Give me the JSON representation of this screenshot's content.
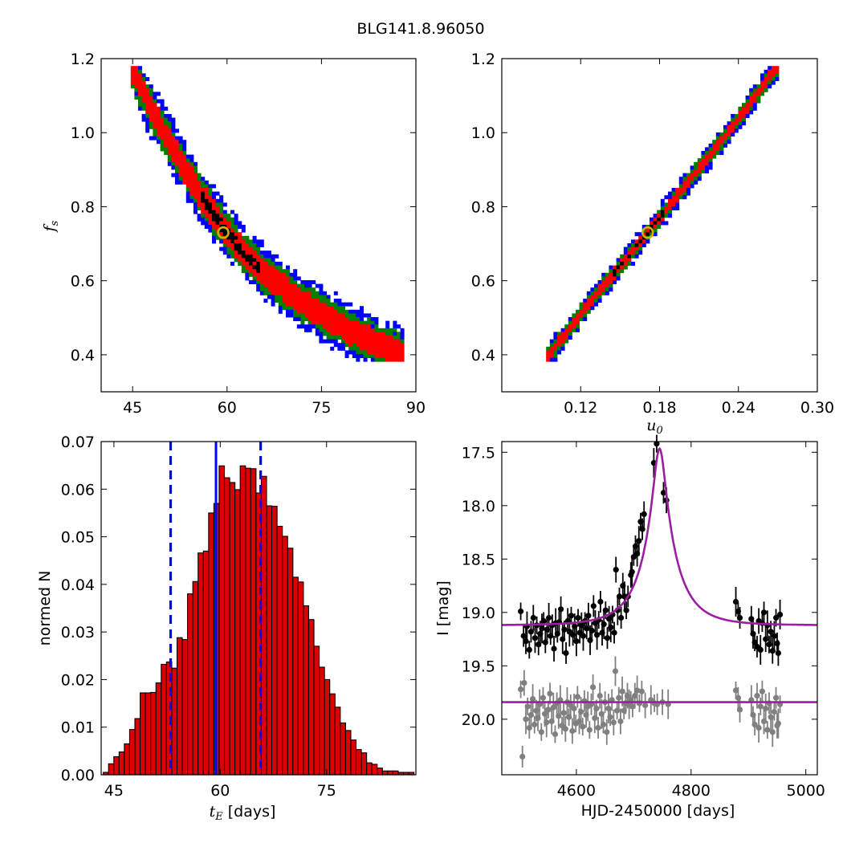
{
  "figure": {
    "title": "BLG141.8.96050"
  },
  "colors": {
    "sigma1": "#000000",
    "sigma2": "#ff0000",
    "sigma3": "#008000",
    "sigma4": "#0000ff",
    "best_marker": "#c8b400",
    "hist_bar": "#dd0000",
    "hist_lines": "#0000ff",
    "model": "#9b1fa0",
    "data_main": "#000000",
    "data_resid": "#808080"
  },
  "chart_data": [
    {
      "id": "tE_vs_fs",
      "type": "heatmap",
      "xlabel": "",
      "ylabel": "f_s",
      "ylabel_base": "f",
      "ylabel_sub": "s",
      "xlim": [
        40,
        90
      ],
      "ylim": [
        0.3,
        1.2
      ],
      "xticks": [
        "45",
        "60",
        "75",
        "90"
      ],
      "xtick_values": [
        45,
        60,
        75,
        90
      ],
      "yticks": [
        "0.4",
        "0.6",
        "0.8",
        "1.0",
        "1.2"
      ],
      "ytick_values": [
        0.4,
        0.6,
        0.8,
        1.0,
        1.2
      ],
      "best_fit": {
        "x": 59.4,
        "y": 0.73
      },
      "ridge": [
        [
          44.8,
          1.18
        ],
        [
          48,
          1.06
        ],
        [
          51,
          0.97
        ],
        [
          54,
          0.88
        ],
        [
          57,
          0.8
        ],
        [
          60,
          0.73
        ],
        [
          63,
          0.67
        ],
        [
          66,
          0.62
        ],
        [
          69,
          0.58
        ],
        [
          72,
          0.54
        ],
        [
          76,
          0.5
        ],
        [
          80,
          0.46
        ],
        [
          85,
          0.42
        ],
        [
          88,
          0.4
        ]
      ],
      "black_ridge": [
        [
          55.8,
          0.82
        ],
        [
          65.4,
          0.62
        ]
      ],
      "widths": {
        "blue": 0.07,
        "green": 0.05,
        "red": 0.035
      }
    },
    {
      "id": "u0_vs_fs",
      "type": "heatmap",
      "xlabel": "u_0",
      "xlabel_base": "u",
      "xlabel_sub": "0",
      "ylabel": "",
      "xlim": [
        0.06,
        0.3
      ],
      "ylim": [
        0.3,
        1.2
      ],
      "xticks": [
        "0.12",
        "0.18",
        "0.24",
        "0.30"
      ],
      "xtick_values": [
        0.12,
        0.18,
        0.24,
        0.3
      ],
      "yticks": [
        "0.4",
        "0.6",
        "0.8",
        "1.0",
        "1.2"
      ],
      "ytick_values": [
        0.4,
        0.6,
        0.8,
        1.0,
        1.2
      ],
      "best_fit": {
        "x": 0.171,
        "y": 0.73
      },
      "ridge": [
        [
          0.095,
          0.395
        ],
        [
          0.12,
          0.51
        ],
        [
          0.15,
          0.64
        ],
        [
          0.171,
          0.73
        ],
        [
          0.2,
          0.86
        ],
        [
          0.23,
          0.99
        ],
        [
          0.27,
          1.18
        ]
      ],
      "black_ridge": [
        [
          0.145,
          0.605
        ],
        [
          0.183,
          0.8
        ]
      ],
      "widths": {
        "blue": 0.032,
        "green": 0.022,
        "red": 0.014
      }
    },
    {
      "id": "tE_histogram",
      "type": "bar",
      "xlabel": "t_E [days]",
      "xlabel_base": "t",
      "xlabel_sub": "E",
      "xlabel_unit": " [days]",
      "ylabel": "normed N",
      "xlim": [
        43.2,
        87.6
      ],
      "ylim": [
        0,
        0.07
      ],
      "xticks": [
        "45",
        "60",
        "75"
      ],
      "xtick_values": [
        45,
        60,
        75
      ],
      "yticks": [
        "0.00",
        "0.01",
        "0.02",
        "0.03",
        "0.04",
        "0.05",
        "0.06",
        "0.07"
      ],
      "ytick_values": [
        0,
        0.01,
        0.02,
        0.03,
        0.04,
        0.05,
        0.06,
        0.07
      ],
      "bin_start": 43.5,
      "bin_width": 0.743,
      "values": [
        0.0005,
        0.0023,
        0.0038,
        0.0048,
        0.0065,
        0.0095,
        0.0118,
        0.0172,
        0.0172,
        0.0173,
        0.0193,
        0.0232,
        0.0237,
        0.0224,
        0.0288,
        0.0284,
        0.038,
        0.0406,
        0.0466,
        0.047,
        0.055,
        0.057,
        0.0649,
        0.0624,
        0.0614,
        0.0599,
        0.0649,
        0.0644,
        0.0643,
        0.0592,
        0.0627,
        0.0565,
        0.0564,
        0.0522,
        0.0501,
        0.0476,
        0.0415,
        0.0405,
        0.0355,
        0.0326,
        0.027,
        0.0226,
        0.02,
        0.017,
        0.0142,
        0.0109,
        0.0093,
        0.0073,
        0.0053,
        0.0046,
        0.0025,
        0.0022,
        0.0014,
        0.0008,
        0.0008,
        0.0008,
        0.0005,
        0.0005,
        0.0005,
        0.0002,
        0.0002,
        0.0002,
        0.0005,
        0.0002,
        0.0001,
        0.0001,
        0.0001,
        0.0001
      ],
      "median": 59.4,
      "interval": [
        53.0,
        65.7
      ]
    },
    {
      "id": "light_curve",
      "type": "scatter",
      "xlabel": "HJD-2450000 [days]",
      "ylabel": "I [mag]",
      "xlim": [
        4470,
        5020
      ],
      "ylim": [
        20.52,
        17.4
      ],
      "y_inverted": true,
      "xticks": [
        "4600",
        "4800",
        "5000"
      ],
      "xtick_values": [
        4600,
        4800,
        5000
      ],
      "yticks": [
        "17.5",
        "18.0",
        "18.5",
        "19.0",
        "19.5",
        "20.0"
      ],
      "ytick_values": [
        17.5,
        18.0,
        18.5,
        19.0,
        19.5,
        20.0
      ],
      "model": {
        "t0": 4745,
        "tE": 59.4,
        "u0": 0.171,
        "baseline": 19.12,
        "fs": 0.73
      },
      "residual_offset": 19.84,
      "series": [
        {
          "name": "",
          "points": [
            [
              4503,
              18.99
            ],
            [
              4508,
              19.22
            ],
            [
              4512,
              19.27
            ],
            [
              4514,
              19.13
            ],
            [
              4518,
              19.35
            ],
            [
              4521,
              19.18
            ],
            [
              4525,
              19.05
            ],
            [
              4528,
              19.24
            ],
            [
              4531,
              19.12
            ],
            [
              4534,
              19.3
            ],
            [
              4537,
              19.2
            ],
            [
              4540,
              19.15
            ],
            [
              4543,
              19.08
            ],
            [
              4546,
              19.28
            ],
            [
              4549,
              19.16
            ],
            [
              4552,
              19.05
            ],
            [
              4555,
              19.22
            ],
            [
              4558,
              19.12
            ],
            [
              4561,
              19.34
            ],
            [
              4564,
              19.1
            ],
            [
              4567,
              19.2
            ],
            [
              4570,
              19.09
            ],
            [
              4573,
              18.97
            ],
            [
              4576,
              19.25
            ],
            [
              4579,
              19.16
            ],
            [
              4582,
              19.38
            ],
            [
              4585,
              19.08
            ],
            [
              4588,
              19.18
            ],
            [
              4591,
              19.03
            ],
            [
              4594,
              19.21
            ],
            [
              4597,
              19.13
            ],
            [
              4600,
              19.27
            ],
            [
              4603,
              19.05
            ],
            [
              4606,
              19.19
            ],
            [
              4609,
              19.12
            ],
            [
              4612,
              19.22
            ],
            [
              4615,
              19.08
            ],
            [
              4618,
              19.15
            ],
            [
              4621,
              19.03
            ],
            [
              4624,
              19.26
            ],
            [
              4627,
              19.17
            ],
            [
              4630,
              18.94
            ],
            [
              4633,
              19.1
            ],
            [
              4636,
              19.21
            ],
            [
              4639,
              19.07
            ],
            [
              4642,
              18.9
            ],
            [
              4645,
              19.19
            ],
            [
              4648,
              19.11
            ],
            [
              4651,
              18.98
            ],
            [
              4654,
              19.24
            ],
            [
              4657,
              19.06
            ],
            [
              4660,
              19.14
            ],
            [
              4663,
              19.02
            ],
            [
              4666,
              19.19
            ],
            [
              4669,
              18.6
            ],
            [
              4672,
              18.98
            ],
            [
              4675,
              18.85
            ],
            [
              4678,
              19.05
            ],
            [
              4681,
              18.75
            ],
            [
              4684,
              18.85
            ],
            [
              4687,
              18.98
            ],
            [
              4690,
              18.85
            ],
            [
              4695,
              18.65
            ],
            [
              4697,
              18.62
            ],
            [
              4700,
              18.48
            ],
            [
              4703,
              18.38
            ],
            [
              4706,
              18.45
            ],
            [
              4709,
              18.33
            ],
            [
              4712,
              18.15
            ],
            [
              4715,
              18.22
            ],
            [
              4718,
              18.08
            ],
            [
              4735,
              17.6
            ],
            [
              4740,
              17.42
            ],
            [
              4752,
              17.88
            ],
            [
              4757,
              17.95
            ],
            [
              4878,
              18.9
            ],
            [
              4882,
              18.99
            ],
            [
              4885,
              19.05
            ],
            [
              4905,
              19.06
            ],
            [
              4908,
              19.2
            ],
            [
              4911,
              19.28
            ],
            [
              4915,
              19.32
            ],
            [
              4918,
              19.08
            ],
            [
              4921,
              19.35
            ],
            [
              4924,
              19.1
            ],
            [
              4927,
              19.0
            ],
            [
              4930,
              19.25
            ],
            [
              4933,
              19.12
            ],
            [
              4936,
              19.3
            ],
            [
              4939,
              19.18
            ],
            [
              4942,
              19.36
            ],
            [
              4945,
              19.22
            ],
            [
              4948,
              19.05
            ],
            [
              4950,
              19.29
            ],
            [
              4952,
              19.38
            ],
            [
              4955,
              19.02
            ]
          ]
        },
        {
          "name": "",
          "points": [
            [
              4503,
              19.72
            ],
            [
              4506,
              20.35
            ],
            [
              4509,
              19.66
            ],
            [
              4512,
              20.0
            ],
            [
              4515,
              19.88
            ],
            [
              4518,
              20.08
            ],
            [
              4521,
              19.96
            ],
            [
              4524,
              19.81
            ],
            [
              4527,
              20.05
            ],
            [
              4530,
              19.92
            ],
            [
              4533,
              19.99
            ],
            [
              4536,
              19.86
            ],
            [
              4539,
              20.12
            ],
            [
              4542,
              19.8
            ],
            [
              4545,
              19.95
            ],
            [
              4548,
              20.03
            ],
            [
              4551,
              19.91
            ],
            [
              4554,
              19.76
            ],
            [
              4557,
              20.02
            ],
            [
              4560,
              19.89
            ],
            [
              4563,
              20.14
            ],
            [
              4566,
              19.85
            ],
            [
              4569,
              19.97
            ],
            [
              4572,
              19.82
            ],
            [
              4575,
              20.06
            ],
            [
              4578,
              19.94
            ],
            [
              4581,
              20.09
            ],
            [
              4584,
              19.84
            ],
            [
              4587,
              19.98
            ],
            [
              4590,
              19.87
            ],
            [
              4593,
              20.11
            ],
            [
              4596,
              19.9
            ],
            [
              4599,
              20.04
            ],
            [
              4602,
              19.79
            ],
            [
              4605,
              20.02
            ],
            [
              4608,
              19.93
            ],
            [
              4611,
              20.07
            ],
            [
              4614,
              19.83
            ],
            [
              4617,
              19.96
            ],
            [
              4620,
              19.88
            ],
            [
              4623,
              20.1
            ],
            [
              4626,
              19.86
            ],
            [
              4629,
              19.7
            ],
            [
              4632,
              19.99
            ],
            [
              4635,
              19.9
            ],
            [
              4638,
              20.08
            ],
            [
              4641,
              19.78
            ],
            [
              4644,
              19.95
            ],
            [
              4647,
              20.05
            ],
            [
              4650,
              19.84
            ],
            [
              4653,
              20.12
            ],
            [
              4656,
              19.9
            ],
            [
              4659,
              19.98
            ],
            [
              4662,
              19.82
            ],
            [
              4665,
              20.03
            ],
            [
              4668,
              19.55
            ],
            [
              4671,
              19.92
            ],
            [
              4674,
              19.8
            ],
            [
              4677,
              20.02
            ],
            [
              4680,
              19.74
            ],
            [
              4683,
              19.92
            ],
            [
              4686,
              19.85
            ],
            [
              4689,
              19.78
            ],
            [
              4692,
              19.86
            ],
            [
              4695,
              19.82
            ],
            [
              4698,
              19.88
            ],
            [
              4702,
              19.78
            ],
            [
              4706,
              19.73
            ],
            [
              4710,
              19.85
            ],
            [
              4714,
              19.74
            ],
            [
              4720,
              19.87
            ],
            [
              4730,
              19.82
            ],
            [
              4736,
              19.85
            ],
            [
              4741,
              19.86
            ],
            [
              4750,
              19.84
            ],
            [
              4760,
              19.86
            ],
            [
              4878,
              19.73
            ],
            [
              4882,
              19.8
            ],
            [
              4885,
              19.91
            ],
            [
              4905,
              19.82
            ],
            [
              4908,
              19.96
            ],
            [
              4911,
              20.05
            ],
            [
              4915,
              19.78
            ],
            [
              4918,
              20.08
            ],
            [
              4921,
              19.88
            ],
            [
              4924,
              19.74
            ],
            [
              4927,
              20.02
            ],
            [
              4930,
              19.9
            ],
            [
              4933,
              20.1
            ],
            [
              4936,
              19.85
            ],
            [
              4939,
              19.98
            ],
            [
              4942,
              20.12
            ],
            [
              4945,
              19.93
            ],
            [
              4948,
              19.8
            ],
            [
              4950,
              20.06
            ],
            [
              4952,
              20.04
            ],
            [
              4955,
              19.86
            ]
          ]
        }
      ]
    }
  ]
}
